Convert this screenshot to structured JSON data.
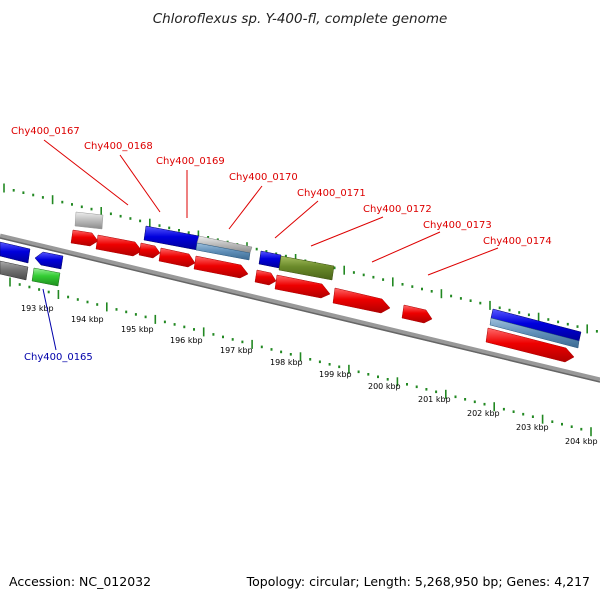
{
  "title": "Chloroflexus sp. Y-400-fl, complete genome",
  "accession": "Accession: NC_012032",
  "summary": "Topology: circular; Length: 5,268,950 bp; Genes: 4,217",
  "colors": {
    "top_strand_label": "#dd0000",
    "bottom_strand_label": "#0000aa",
    "cds_red": "#ee0000",
    "cds_blue": "#0000dd",
    "cds_green": "#33cc33",
    "cds_olive": "#668822",
    "cds_gray": "#b0b0b0",
    "backbone": "#888888",
    "ticks": "#228822"
  },
  "ticks": [
    "193 kbp",
    "194 kbp",
    "195 kbp",
    "196 kbp",
    "197 kbp",
    "198 kbp",
    "199 kbp",
    "200 kbp",
    "201 kbp",
    "202 kbp",
    "203 kbp",
    "204 kbp"
  ],
  "gene_labels": [
    {
      "name": "Chy400_0167",
      "strand": "forward"
    },
    {
      "name": "Chy400_0168",
      "strand": "forward"
    },
    {
      "name": "Chy400_0169",
      "strand": "forward"
    },
    {
      "name": "Chy400_0170",
      "strand": "forward"
    },
    {
      "name": "Chy400_0171",
      "strand": "forward"
    },
    {
      "name": "Chy400_0172",
      "strand": "forward"
    },
    {
      "name": "Chy400_0173",
      "strand": "forward"
    },
    {
      "name": "Chy400_0174",
      "strand": "forward"
    },
    {
      "name": "Chy400_0165",
      "strand": "reverse"
    }
  ]
}
